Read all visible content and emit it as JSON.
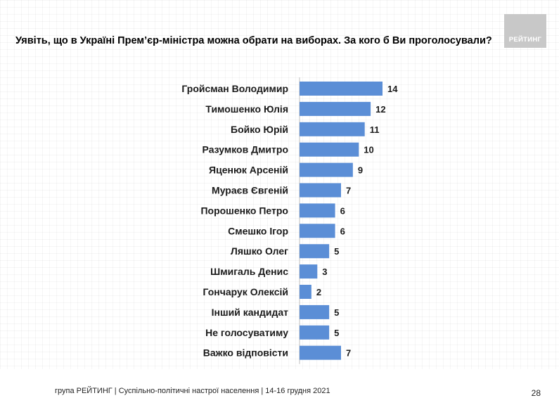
{
  "header": {
    "logo_text": "РЕЙТИНГ"
  },
  "footer": {
    "text": "група РЕЙТИНГ | Суспільно-політичні настрої населення |  14-16 грудня 2021",
    "page_number": "28"
  },
  "colors": {
    "bar": "#5b8ed6",
    "logo_bg": "#c8c8c8"
  },
  "chart_data": {
    "type": "bar",
    "orientation": "horizontal",
    "title": "Уявіть, що в Україні Прем’єр-міністра можна обрати на виборах. За кого б Ви проголосували?",
    "xlabel": "",
    "ylabel": "",
    "xlim": [
      0,
      14
    ],
    "categories": [
      "Гройсман Володимир",
      "Тимошенко Юлія",
      "Бойко Юрій",
      "Разумков Дмитро",
      "Яценюк Арсеній",
      "Мураєв Євгеній",
      "Порошенко Петро",
      "Смешко Ігор",
      "Ляшко Олег",
      "Шмигаль Денис",
      "Гончарук Олексій",
      "Інший кандидат",
      "Не голосуватиму",
      "Важко відповісти"
    ],
    "values": [
      14,
      12,
      11,
      10,
      9,
      7,
      6,
      6,
      5,
      3,
      2,
      5,
      5,
      7
    ]
  }
}
